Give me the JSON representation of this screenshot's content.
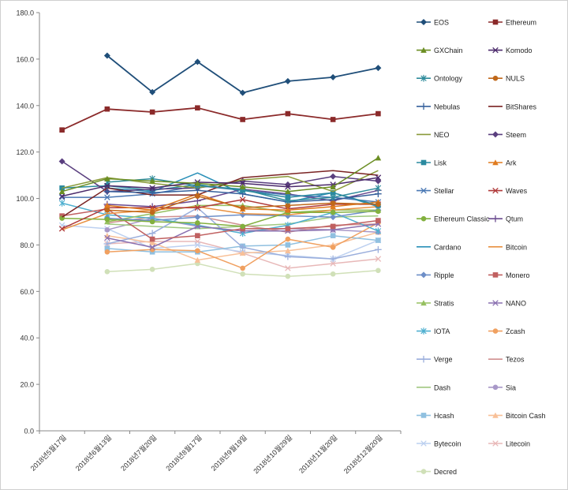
{
  "chart_data": {
    "type": "line",
    "title": "",
    "xlabel": "",
    "ylabel": "",
    "ylim": [
      0,
      180
    ],
    "yticks": [
      "0.0",
      "20.0",
      "40.0",
      "60.0",
      "80.0",
      "100.0",
      "120.0",
      "140.0",
      "160.0",
      "180.0"
    ],
    "grid": false,
    "legend_position": "right",
    "categories": [
      "2018년5월17일",
      "2018년6월13일",
      "2018년7월20일",
      "2018년8월17일",
      "2018년9월19일",
      "2018년10월29일",
      "2018년11월20일",
      "2018년12월20일"
    ],
    "series": [
      {
        "name": "EOS",
        "color": "#1f4e79",
        "marker": "diamond",
        "values": [
          null,
          161.5,
          145.8,
          158.8,
          145.5,
          150.5,
          152.2,
          156.2
        ]
      },
      {
        "name": "Ethereum",
        "color": "#8b2a2a",
        "marker": "square",
        "values": [
          129.5,
          138.5,
          137.2,
          139.0,
          134.0,
          136.5,
          134.0,
          136.5
        ]
      },
      {
        "name": "GXChain",
        "color": "#6b8e23",
        "marker": "triangle",
        "values": [
          103.0,
          108.5,
          107.5,
          106.5,
          105.0,
          103.0,
          105.0,
          117.5
        ]
      },
      {
        "name": "Komodo",
        "color": "#4b2a6b",
        "marker": "x",
        "values": [
          101.0,
          105.5,
          104.5,
          107.0,
          106.5,
          105.0,
          106.0,
          109.0
        ]
      },
      {
        "name": "Ontology",
        "color": "#2e8b9b",
        "marker": "star",
        "values": [
          null,
          107.0,
          108.5,
          105.5,
          104.0,
          99.0,
          100.5,
          104.5
        ]
      },
      {
        "name": "NULS",
        "color": "#c0681a",
        "marker": "circle",
        "values": [
          null,
          95.0,
          94.0,
          101.0,
          96.0,
          97.0,
          98.0,
          97.5
        ]
      },
      {
        "name": "Nebulas",
        "color": "#36609c",
        "marker": "plus",
        "values": [
          null,
          103.0,
          102.5,
          103.5,
          102.0,
          98.5,
          99.5,
          102.0
        ]
      },
      {
        "name": "BitShares",
        "color": "#7a2323",
        "marker": "none",
        "values": [
          92.0,
          104.5,
          101.5,
          101.5,
          109.0,
          110.5,
          112.0,
          110.0
        ]
      },
      {
        "name": "NEO",
        "color": "#8a9a3a",
        "marker": "none",
        "values": [
          104.5,
          109.0,
          106.5,
          104.5,
          108.0,
          109.5,
          103.0,
          112.0
        ]
      },
      {
        "name": "Steem",
        "color": "#5a3f7f",
        "marker": "diamond",
        "values": [
          116.0,
          103.0,
          104.0,
          104.5,
          107.5,
          106.0,
          109.5,
          107.5
        ]
      },
      {
        "name": "Lisk",
        "color": "#2a8aa0",
        "marker": "square",
        "values": [
          104.5,
          105.5,
          103.5,
          106.0,
          103.5,
          100.5,
          102.5,
          97.0
        ]
      },
      {
        "name": "Ark",
        "color": "#e07b1f",
        "marker": "triangle",
        "values": [
          null,
          97.0,
          95.0,
          102.0,
          95.5,
          95.0,
          96.5,
          98.5
        ]
      },
      {
        "name": "Stellar",
        "color": "#4a78b4",
        "marker": "x",
        "values": [
          100.5,
          100.5,
          102.0,
          105.5,
          103.5,
          101.5,
          100.5,
          98.5
        ]
      },
      {
        "name": "Waves",
        "color": "#b03a3a",
        "marker": "x",
        "values": [
          87.0,
          96.0,
          96.0,
          96.0,
          99.5,
          95.5,
          97.5,
          97.5
        ]
      },
      {
        "name": "Ethereum Classic",
        "color": "#82b03e",
        "marker": "circle",
        "values": [
          91.5,
          91.0,
          90.0,
          89.5,
          88.0,
          94.0,
          94.0,
          94.5
        ]
      },
      {
        "name": "Qtum",
        "color": "#6a4a8f",
        "marker": "plus",
        "values": [
          null,
          97.5,
          96.5,
          99.0,
          104.0,
          102.0,
          99.0,
          103.5
        ]
      },
      {
        "name": "Cardano",
        "color": "#2a90b8",
        "marker": "none",
        "values": [
          null,
          104.5,
          103.0,
          111.0,
          102.0,
          98.5,
          102.5,
          96.5
        ]
      },
      {
        "name": "Bitcoin",
        "color": "#e89040",
        "marker": "none",
        "values": [
          86.5,
          93.5,
          95.0,
          96.5,
          93.5,
          93.0,
          95.0,
          96.5
        ]
      },
      {
        "name": "Ripple",
        "color": "#6e8fc8",
        "marker": "diamond",
        "values": [
          null,
          91.5,
          90.5,
          92.0,
          93.0,
          92.5,
          92.0,
          95.0
        ]
      },
      {
        "name": "Monero",
        "color": "#c06060",
        "marker": "square",
        "values": [
          92.5,
          95.5,
          82.5,
          84.0,
          87.0,
          87.0,
          88.0,
          90.5
        ]
      },
      {
        "name": "Stratis",
        "color": "#96c060",
        "marker": "triangle",
        "values": [
          null,
          90.0,
          93.5,
          97.0,
          97.0,
          94.0,
          95.0,
          95.0
        ]
      },
      {
        "name": "NANO",
        "color": "#8a70b0",
        "marker": "x",
        "values": [
          null,
          83.0,
          79.0,
          88.0,
          86.0,
          86.0,
          86.5,
          89.0
        ]
      },
      {
        "name": "IOTA",
        "color": "#50b0d0",
        "marker": "star",
        "values": [
          98.0,
          93.0,
          91.5,
          88.5,
          85.0,
          88.5,
          94.0,
          86.0
        ]
      },
      {
        "name": "Zcash",
        "color": "#f0a060",
        "marker": "circle",
        "values": [
          null,
          77.0,
          78.0,
          77.5,
          70.0,
          82.5,
          79.0,
          89.5
        ]
      },
      {
        "name": "Verge",
        "color": "#9aaedc",
        "marker": "plus",
        "values": [
          null,
          80.5,
          85.0,
          96.0,
          79.0,
          75.0,
          74.0,
          78.0
        ]
      },
      {
        "name": "Tezos",
        "color": "#d09090",
        "marker": "none",
        "values": [
          null,
          89.5,
          92.0,
          92.5,
          88.5,
          85.5,
          88.5,
          89.0
        ]
      },
      {
        "name": "Dash",
        "color": "#a0c880",
        "marker": "none",
        "values": [
          null,
          89.0,
          88.0,
          87.0,
          88.0,
          89.0,
          92.0,
          92.5
        ]
      },
      {
        "name": "Sia",
        "color": "#a898c8",
        "marker": "circle",
        "values": [
          null,
          86.5,
          91.5,
          88.0,
          86.0,
          87.0,
          86.5,
          85.5
        ]
      },
      {
        "name": "Hcash",
        "color": "#90c0e0",
        "marker": "square",
        "values": [
          null,
          78.5,
          77.0,
          77.0,
          79.5,
          80.0,
          84.0,
          82.0
        ]
      },
      {
        "name": "Bitcoin Cash",
        "color": "#f8c098",
        "marker": "triangle",
        "values": [
          null,
          84.0,
          81.0,
          73.5,
          76.5,
          77.5,
          80.0,
          85.5
        ]
      },
      {
        "name": "Bytecoin",
        "color": "#bcd0f0",
        "marker": "x",
        "values": [
          88.5,
          87.0,
          78.5,
          80.0,
          77.0,
          75.5,
          74.0,
          82.0
        ]
      },
      {
        "name": "Litecoin",
        "color": "#e8b8b8",
        "marker": "x",
        "values": [
          null,
          80.5,
          81.5,
          81.5,
          76.5,
          70.0,
          72.0,
          74.0
        ]
      },
      {
        "name": "Decred",
        "color": "#d0e0b8",
        "marker": "circle",
        "values": [
          null,
          68.5,
          69.5,
          72.0,
          67.5,
          66.5,
          67.5,
          69.0
        ]
      }
    ]
  }
}
